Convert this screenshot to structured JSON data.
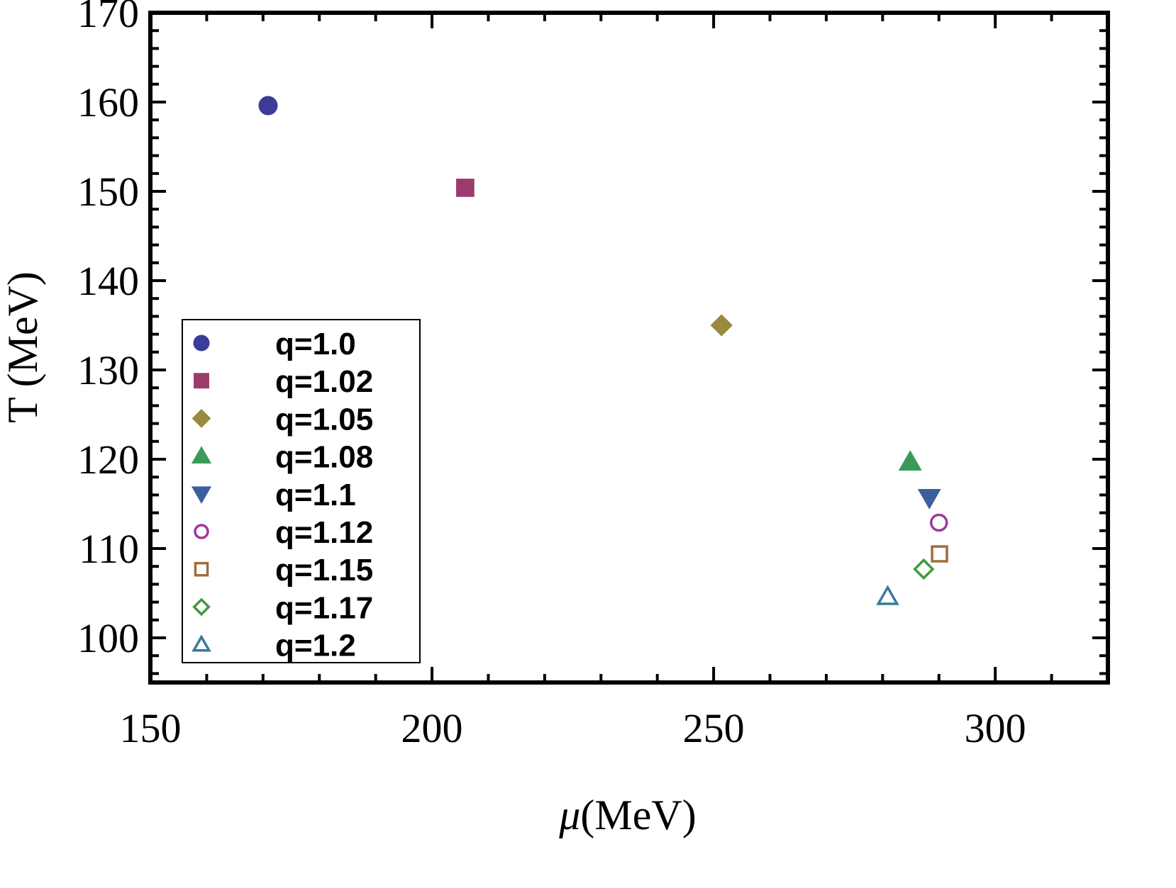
{
  "chart_data": {
    "type": "scatter",
    "title": "",
    "xlabel": "μ(MeV)",
    "xlabel_symbol": "μ",
    "xlabel_unit": "(MeV)",
    "ylabel": "T (MeV)",
    "xlim": [
      150,
      320
    ],
    "ylim": [
      95,
      170
    ],
    "xticks": [
      150,
      200,
      250,
      300
    ],
    "yticks": [
      100,
      110,
      120,
      130,
      140,
      150,
      160,
      170
    ],
    "grid": false,
    "legend_position": "bottom-left",
    "series": [
      {
        "name": "q=1.0",
        "x": 170.9,
        "y": 159.6,
        "marker": "circle",
        "filled": true,
        "color": "#3b3b9a"
      },
      {
        "name": "q=1.02",
        "x": 205.9,
        "y": 150.4,
        "marker": "square",
        "filled": true,
        "color": "#9b3b6e"
      },
      {
        "name": "q=1.05",
        "x": 251.4,
        "y": 135.0,
        "marker": "diamond",
        "filled": true,
        "color": "#9a8a3e"
      },
      {
        "name": "q=1.08",
        "x": 284.9,
        "y": 119.7,
        "marker": "triangle-up",
        "filled": true,
        "color": "#3a9a57"
      },
      {
        "name": "q=1.1",
        "x": 288.3,
        "y": 115.7,
        "marker": "triangle-down",
        "filled": true,
        "color": "#3d5e9c"
      },
      {
        "name": "q=1.12",
        "x": 290.0,
        "y": 112.9,
        "marker": "circle",
        "filled": false,
        "color": "#9b3b9a"
      },
      {
        "name": "q=1.15",
        "x": 290.1,
        "y": 109.4,
        "marker": "square",
        "filled": false,
        "color": "#a06c3c"
      },
      {
        "name": "q=1.17",
        "x": 287.3,
        "y": 107.7,
        "marker": "diamond",
        "filled": false,
        "color": "#3f9a3c"
      },
      {
        "name": "q=1.2",
        "x": 280.9,
        "y": 104.6,
        "marker": "triangle-up",
        "filled": false,
        "color": "#3a7a9a"
      }
    ]
  }
}
